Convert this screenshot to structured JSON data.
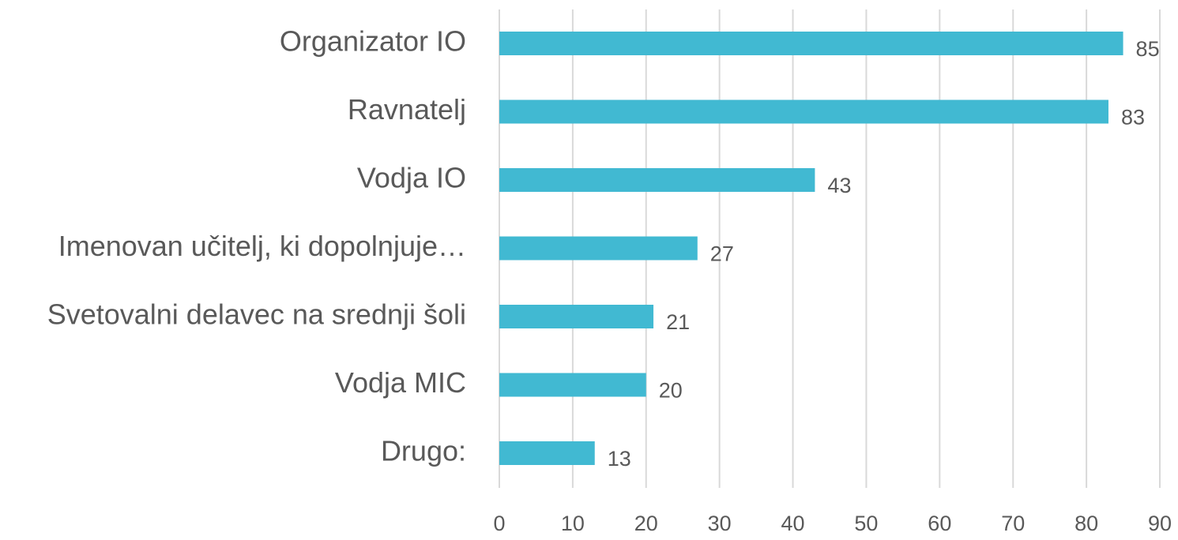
{
  "chart_data": {
    "type": "bar",
    "orientation": "horizontal",
    "categories": [
      "Organizator IO",
      "Ravnatelj",
      "Vodja IO",
      "Imenovan učitelj, ki dopolnjuje…",
      "Svetovalni delavec na srednji šoli",
      "Vodja MIC",
      "Drugo:"
    ],
    "values": [
      85,
      83,
      43,
      27,
      21,
      20,
      13
    ],
    "color": "#41b9d2",
    "xlim": [
      0,
      90
    ],
    "xticks": [
      0,
      10,
      20,
      30,
      40,
      50,
      60,
      70,
      80,
      90
    ],
    "grid": true
  }
}
